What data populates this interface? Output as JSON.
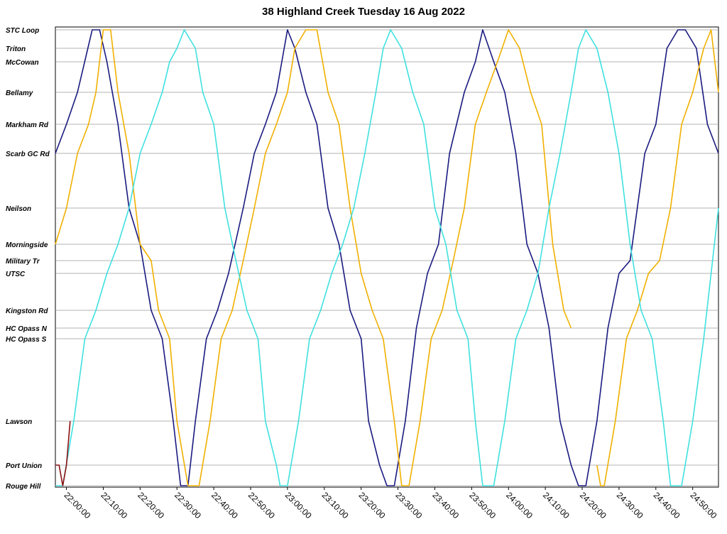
{
  "chart_data": {
    "type": "line",
    "title": "38 Highland Creek Tuesday 16 Aug 2022",
    "xlabel": "",
    "ylabel": "",
    "x_unit": "time of day",
    "xlim": [
      "21:57",
      "24:57"
    ],
    "x_ticks": [
      "22:00:00",
      "22:10:00",
      "22:20:00",
      "22:30:00",
      "22:40:00",
      "22:50:00",
      "23:00:00",
      "23:10:00",
      "23:20:00",
      "23:30:00",
      "23:40:00",
      "23:50:00",
      "24:00:00",
      "24:10:00",
      "24:20:00",
      "24:30:00",
      "24:40:00",
      "24:50:00"
    ],
    "y_axis": "stop along route",
    "stops": [
      {
        "name": "STC Loop",
        "pos": 42
      },
      {
        "name": "Triton",
        "pos": 68
      },
      {
        "name": "McCowan",
        "pos": 87
      },
      {
        "name": "Bellamy",
        "pos": 130
      },
      {
        "name": "Markham Rd",
        "pos": 175
      },
      {
        "name": "Scarb GC Rd",
        "pos": 216
      },
      {
        "name": "Neilson",
        "pos": 293
      },
      {
        "name": "Morningside",
        "pos": 344
      },
      {
        "name": "Military Tr",
        "pos": 367
      },
      {
        "name": "UTSC",
        "pos": 385
      },
      {
        "name": "Kingston Rd",
        "pos": 437
      },
      {
        "name": "HC Opass N",
        "pos": 462
      },
      {
        "name": "HC Opass S",
        "pos": 477
      },
      {
        "name": "Lawson",
        "pos": 593
      },
      {
        "name": "Port Union",
        "pos": 655
      },
      {
        "name": "Rouge Hill",
        "pos": 684
      }
    ],
    "grid": true,
    "legend": "none",
    "series": [
      {
        "color": "#1a1a80",
        "points": [
          [
            "21:57",
            "Scarb GC Rd"
          ],
          [
            "22:00",
            "Markham Rd"
          ],
          [
            "22:03",
            "Bellamy"
          ],
          [
            "22:07",
            "STC Loop"
          ],
          [
            "22:09",
            "STC Loop"
          ],
          [
            "22:11",
            "McCowan"
          ],
          [
            "22:14",
            "Markham Rd"
          ],
          [
            "22:17",
            "Neilson"
          ],
          [
            "22:20",
            "Morningside"
          ],
          [
            "22:23",
            "Kingston Rd"
          ],
          [
            "22:26",
            "HC Opass S"
          ],
          [
            "22:29",
            "Lawson"
          ],
          [
            "22:31",
            "Rouge Hill"
          ],
          [
            "22:33",
            "Rouge Hill"
          ],
          [
            "22:35",
            "Lawson"
          ],
          [
            "22:38",
            "HC Opass S"
          ],
          [
            "22:41",
            "Kingston Rd"
          ],
          [
            "22:44",
            "UTSC"
          ],
          [
            "22:48",
            "Neilson"
          ],
          [
            "22:51",
            "Scarb GC Rd"
          ],
          [
            "22:54",
            "Markham Rd"
          ],
          [
            "22:57",
            "Bellamy"
          ],
          [
            "23:00",
            "STC Loop"
          ],
          [
            "23:02",
            "Triton"
          ],
          [
            "23:05",
            "Bellamy"
          ],
          [
            "23:08",
            "Markham Rd"
          ],
          [
            "23:11",
            "Neilson"
          ],
          [
            "23:14",
            "Morningside"
          ],
          [
            "23:17",
            "Kingston Rd"
          ],
          [
            "23:20",
            "HC Opass S"
          ],
          [
            "23:22",
            "Lawson"
          ],
          [
            "23:25",
            "Port Union"
          ],
          [
            "23:27",
            "Rouge Hill"
          ],
          [
            "23:29",
            "Rouge Hill"
          ],
          [
            "23:32",
            "Lawson"
          ],
          [
            "23:35",
            "HC Opass N"
          ],
          [
            "23:38",
            "UTSC"
          ],
          [
            "23:41",
            "Morningside"
          ],
          [
            "23:44",
            "Scarb GC Rd"
          ],
          [
            "23:48",
            "Bellamy"
          ],
          [
            "23:51",
            "McCowan"
          ],
          [
            "23:53",
            "STC Loop"
          ],
          [
            "23:56",
            "McCowan"
          ],
          [
            "23:59",
            "Bellamy"
          ],
          [
            "24:02",
            "Scarb GC Rd"
          ],
          [
            "24:05",
            "Morningside"
          ],
          [
            "24:08",
            "UTSC"
          ],
          [
            "24:11",
            "HC Opass N"
          ],
          [
            "24:14",
            "Lawson"
          ],
          [
            "24:17",
            "Port Union"
          ],
          [
            "24:19",
            "Rouge Hill"
          ],
          [
            "24:21",
            "Rouge Hill"
          ],
          [
            "24:24",
            "Lawson"
          ],
          [
            "24:27",
            "HC Opass N"
          ],
          [
            "24:30",
            "UTSC"
          ],
          [
            "24:33",
            "Military Tr"
          ],
          [
            "24:37",
            "Scarb GC Rd"
          ],
          [
            "24:40",
            "Markham Rd"
          ],
          [
            "24:43",
            "Triton"
          ],
          [
            "24:46",
            "STC Loop"
          ],
          [
            "24:48",
            "STC Loop"
          ],
          [
            "24:51",
            "Triton"
          ],
          [
            "24:54",
            "Markham Rd"
          ],
          [
            "24:57",
            "Scarb GC Rd"
          ]
        ]
      },
      {
        "color": "#f0b000",
        "points": [
          [
            "21:57",
            "Morningside"
          ],
          [
            "22:00",
            "Neilson"
          ],
          [
            "22:03",
            "Scarb GC Rd"
          ],
          [
            "22:06",
            "Markham Rd"
          ],
          [
            "22:08",
            "Bellamy"
          ],
          [
            "22:10",
            "STC Loop"
          ],
          [
            "22:12",
            "STC Loop"
          ],
          [
            "22:14",
            "Bellamy"
          ],
          [
            "22:17",
            "Scarb GC Rd"
          ],
          [
            "22:20",
            "Morningside"
          ],
          [
            "22:23",
            "Military Tr"
          ],
          [
            "22:25",
            "Kingston Rd"
          ],
          [
            "22:28",
            "HC Opass S"
          ],
          [
            "22:30",
            "Lawson"
          ],
          [
            "22:33",
            "Rouge Hill"
          ],
          [
            "22:36",
            "Rouge Hill"
          ],
          [
            "22:39",
            "Lawson"
          ],
          [
            "22:42",
            "HC Opass S"
          ],
          [
            "22:45",
            "Kingston Rd"
          ],
          [
            "22:48",
            "Military Tr"
          ],
          [
            "22:51",
            "Neilson"
          ],
          [
            "22:54",
            "Scarb GC Rd"
          ],
          [
            "22:57",
            "Markham Rd"
          ],
          [
            "23:00",
            "Bellamy"
          ],
          [
            "23:02",
            "Triton"
          ],
          [
            "23:05",
            "STC Loop"
          ],
          [
            "23:08",
            "STC Loop"
          ],
          [
            "23:11",
            "Bellamy"
          ],
          [
            "23:14",
            "Markham Rd"
          ],
          [
            "23:17",
            "Neilson"
          ],
          [
            "23:20",
            "UTSC"
          ],
          [
            "23:23",
            "Kingston Rd"
          ],
          [
            "23:26",
            "HC Opass S"
          ],
          [
            "23:29",
            "Lawson"
          ],
          [
            "23:31",
            "Rouge Hill"
          ],
          [
            "23:33",
            "Rouge Hill"
          ],
          [
            "23:36",
            "Lawson"
          ],
          [
            "23:39",
            "HC Opass S"
          ],
          [
            "23:42",
            "Kingston Rd"
          ],
          [
            "23:45",
            "Military Tr"
          ],
          [
            "23:48",
            "Neilson"
          ],
          [
            "23:51",
            "Markham Rd"
          ],
          [
            "23:54",
            "Bellamy"
          ],
          [
            "23:57",
            "McCowan"
          ],
          [
            "24:00",
            "STC Loop"
          ],
          [
            "24:03",
            "Triton"
          ],
          [
            "24:06",
            "Bellamy"
          ],
          [
            "24:09",
            "Markham Rd"
          ],
          [
            "24:12",
            "Morningside"
          ],
          [
            "24:15",
            "Kingston Rd"
          ],
          [
            "24:17",
            "HC Opass N"
          ]
        ]
      },
      {
        "color": "#f0b000",
        "points": [
          [
            "24:24",
            "Port Union"
          ],
          [
            "24:25",
            "Rouge Hill"
          ],
          [
            "24:26",
            "Rouge Hill"
          ],
          [
            "24:29",
            "Lawson"
          ],
          [
            "24:32",
            "HC Opass S"
          ],
          [
            "24:35",
            "Kingston Rd"
          ],
          [
            "24:38",
            "UTSC"
          ],
          [
            "24:41",
            "Military Tr"
          ],
          [
            "24:44",
            "Neilson"
          ],
          [
            "24:47",
            "Markham Rd"
          ],
          [
            "24:50",
            "Bellamy"
          ],
          [
            "24:53",
            "Triton"
          ],
          [
            "24:55",
            "STC Loop"
          ],
          [
            "24:57",
            "Bellamy"
          ]
        ]
      },
      {
        "color": "#40e0e0",
        "points": [
          [
            "21:57",
            "Rouge Hill"
          ],
          [
            "21:59",
            "Rouge Hill"
          ],
          [
            "22:02",
            "Lawson"
          ],
          [
            "22:05",
            "HC Opass S"
          ],
          [
            "22:08",
            "Kingston Rd"
          ],
          [
            "22:11",
            "UTSC"
          ],
          [
            "22:14",
            "Morningside"
          ],
          [
            "22:17",
            "Neilson"
          ],
          [
            "22:20",
            "Scarb GC Rd"
          ],
          [
            "22:23",
            "Markham Rd"
          ],
          [
            "22:26",
            "Bellamy"
          ],
          [
            "22:28",
            "McCowan"
          ],
          [
            "22:30",
            "Triton"
          ],
          [
            "22:32",
            "STC Loop"
          ],
          [
            "22:35",
            "Triton"
          ],
          [
            "22:37",
            "Bellamy"
          ],
          [
            "22:40",
            "Markham Rd"
          ],
          [
            "22:43",
            "Neilson"
          ],
          [
            "22:46",
            "Military Tr"
          ],
          [
            "22:49",
            "Kingston Rd"
          ],
          [
            "22:52",
            "HC Opass S"
          ],
          [
            "22:54",
            "Lawson"
          ],
          [
            "22:57",
            "Port Union"
          ],
          [
            "22:58",
            "Rouge Hill"
          ],
          [
            "23:00",
            "Rouge Hill"
          ],
          [
            "23:03",
            "Lawson"
          ],
          [
            "23:06",
            "HC Opass S"
          ],
          [
            "23:09",
            "Kingston Rd"
          ],
          [
            "23:12",
            "UTSC"
          ],
          [
            "23:15",
            "Morningside"
          ],
          [
            "23:18",
            "Neilson"
          ],
          [
            "23:21",
            "Scarb GC Rd"
          ],
          [
            "23:24",
            "Bellamy"
          ],
          [
            "23:26",
            "Triton"
          ],
          [
            "23:28",
            "STC Loop"
          ],
          [
            "23:31",
            "Triton"
          ],
          [
            "23:34",
            "Bellamy"
          ],
          [
            "23:37",
            "Markham Rd"
          ],
          [
            "23:40",
            "Neilson"
          ],
          [
            "23:43",
            "Morningside"
          ],
          [
            "23:46",
            "Kingston Rd"
          ],
          [
            "23:49",
            "HC Opass S"
          ],
          [
            "23:51",
            "Lawson"
          ],
          [
            "23:53",
            "Rouge Hill"
          ],
          [
            "23:56",
            "Rouge Hill"
          ],
          [
            "23:59",
            "Lawson"
          ],
          [
            "24:02",
            "HC Opass S"
          ],
          [
            "24:05",
            "Kingston Rd"
          ],
          [
            "24:08",
            "UTSC"
          ],
          [
            "24:11",
            "Neilson"
          ],
          [
            "24:14",
            "Scarb GC Rd"
          ],
          [
            "24:17",
            "Bellamy"
          ],
          [
            "24:19",
            "Triton"
          ],
          [
            "24:21",
            "STC Loop"
          ],
          [
            "24:24",
            "Triton"
          ],
          [
            "24:27",
            "Bellamy"
          ],
          [
            "24:30",
            "Scarb GC Rd"
          ],
          [
            "24:33",
            "Morningside"
          ],
          [
            "24:36",
            "Kingston Rd"
          ],
          [
            "24:39",
            "HC Opass S"
          ],
          [
            "24:42",
            "Lawson"
          ],
          [
            "24:44",
            "Rouge Hill"
          ],
          [
            "24:47",
            "Rouge Hill"
          ],
          [
            "24:50",
            "Lawson"
          ],
          [
            "24:53",
            "HC Opass S"
          ],
          [
            "24:55",
            "UTSC"
          ],
          [
            "24:57",
            "Neilson"
          ]
        ]
      },
      {
        "color": "#8b1010",
        "points": [
          [
            "21:57",
            "Port Union"
          ],
          [
            "21:58",
            "Port Union"
          ],
          [
            "21:59",
            "Rouge Hill"
          ],
          [
            "22:00",
            "Port Union"
          ],
          [
            "22:01",
            "Lawson"
          ]
        ]
      }
    ]
  }
}
